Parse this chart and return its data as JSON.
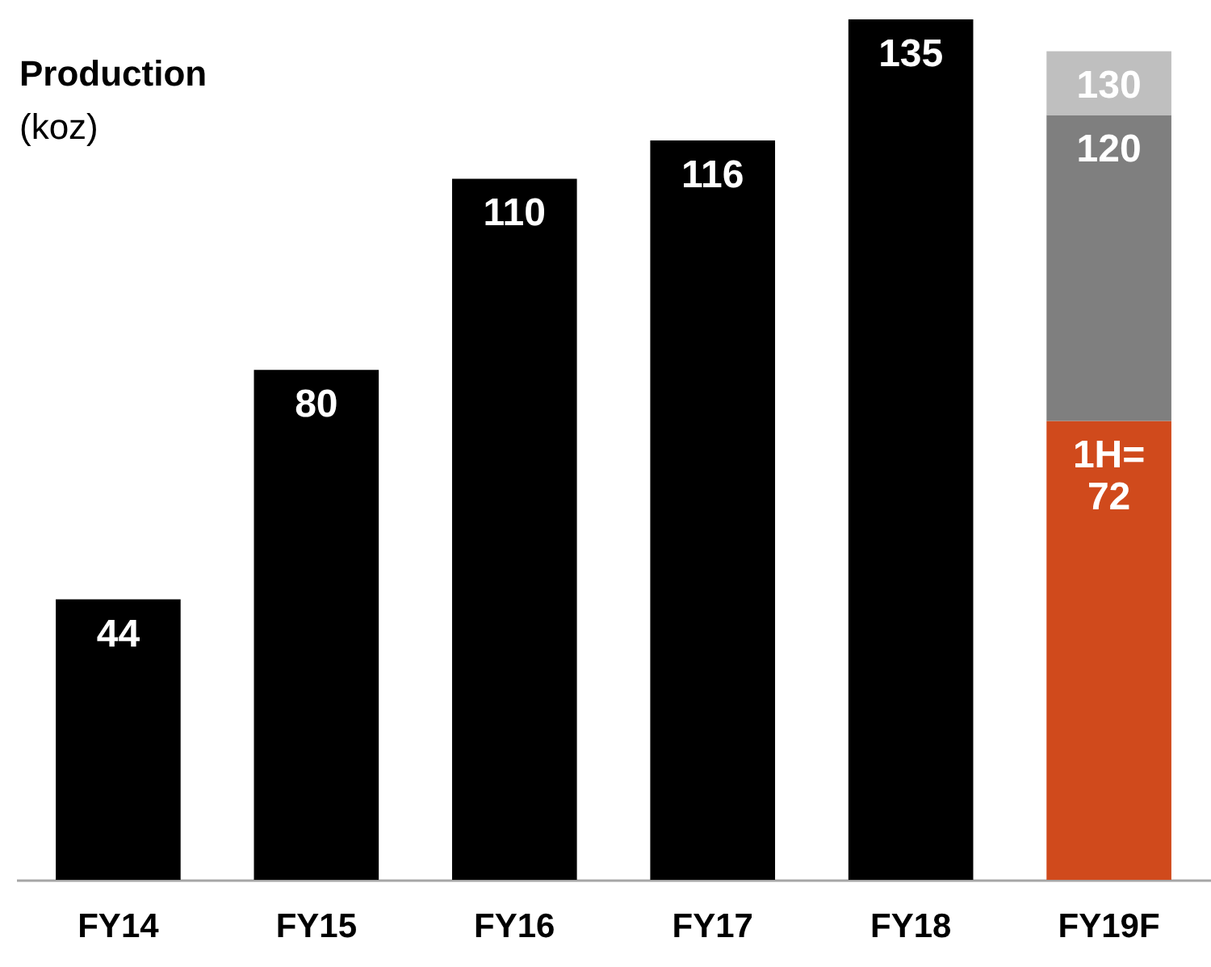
{
  "chart_data": {
    "type": "bar",
    "title": "Production",
    "subtitle": "(koz)",
    "categories": [
      "FY14",
      "FY15",
      "FY16",
      "FY17",
      "FY18",
      "FY19F"
    ],
    "stacked": true,
    "series": [
      {
        "color": "#000000",
        "values": [
          44,
          80,
          110,
          116,
          135,
          null
        ],
        "value_labels": [
          "44",
          "80",
          "110",
          "116",
          "135",
          null
        ]
      },
      {
        "color": "#d04a1c",
        "values": [
          null,
          null,
          null,
          null,
          null,
          72
        ],
        "value_labels": [
          null,
          null,
          null,
          null,
          null,
          "1H=\n72"
        ]
      },
      {
        "color": "#7f7f7f",
        "values": [
          null,
          null,
          null,
          null,
          null,
          48
        ]
      },
      {
        "color": "#bfbfbf",
        "values": [
          null,
          null,
          null,
          null,
          null,
          10
        ]
      }
    ],
    "annotations": [
      {
        "text": "120",
        "x": "FY19F",
        "y": 120
      },
      {
        "text": "130",
        "x": "FY19F",
        "y": 130
      }
    ]
  }
}
